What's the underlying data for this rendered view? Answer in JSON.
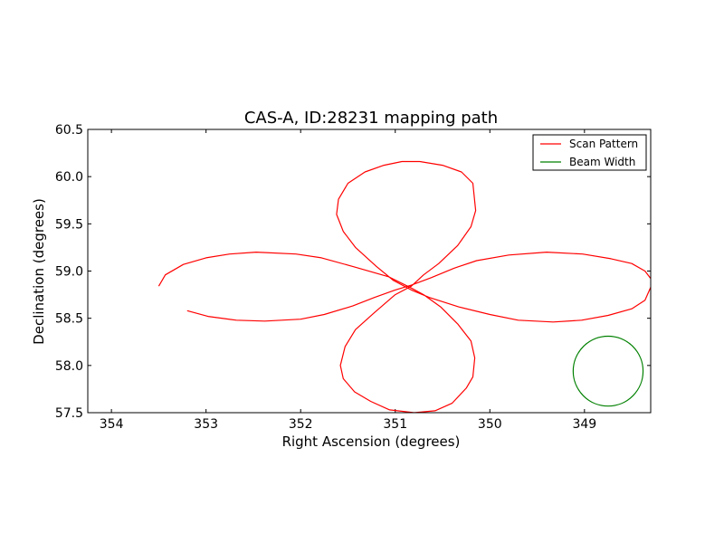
{
  "chart_data": {
    "type": "line",
    "title": "CAS-A, ID:28231 mapping path",
    "xlabel": "Right Ascension (degrees)",
    "ylabel": "Declination (degrees)",
    "xlim": [
      354.25,
      348.3
    ],
    "ylim": [
      57.5,
      60.5
    ],
    "x_ticks": [
      354,
      353,
      352,
      351,
      350,
      349
    ],
    "x_tick_labels": [
      "354",
      "353",
      "352",
      "351",
      "350",
      "349"
    ],
    "y_ticks": [
      57.5,
      58.0,
      58.5,
      59.0,
      59.5,
      60.0,
      60.5
    ],
    "y_tick_labels": [
      "57.5",
      "58.0",
      "58.5",
      "59.0",
      "59.5",
      "60.0",
      "60.5"
    ],
    "legend_position": "top-right",
    "series": [
      {
        "name": "Scan Pattern",
        "color": "#ff0000",
        "points": [
          [
            353.2,
            58.58
          ],
          [
            352.98,
            58.52
          ],
          [
            352.68,
            58.48
          ],
          [
            352.38,
            58.47
          ],
          [
            352.0,
            58.49
          ],
          [
            351.75,
            58.54
          ],
          [
            351.45,
            58.63
          ],
          [
            351.22,
            58.72
          ],
          [
            351.0,
            58.8
          ],
          [
            350.83,
            58.85
          ],
          [
            350.62,
            58.93
          ],
          [
            350.38,
            59.03
          ],
          [
            350.14,
            59.11
          ],
          [
            349.8,
            59.17
          ],
          [
            349.4,
            59.2
          ],
          [
            349.02,
            59.18
          ],
          [
            348.72,
            59.13
          ],
          [
            348.5,
            59.08
          ],
          [
            348.36,
            59.0
          ],
          [
            348.3,
            58.92
          ],
          [
            348.29,
            58.85
          ],
          [
            348.36,
            58.69
          ],
          [
            348.5,
            58.6
          ],
          [
            348.75,
            58.53
          ],
          [
            349.03,
            58.48
          ],
          [
            349.33,
            58.46
          ],
          [
            349.7,
            58.48
          ],
          [
            350.0,
            58.54
          ],
          [
            350.33,
            58.62
          ],
          [
            350.64,
            58.72
          ],
          [
            350.83,
            58.8
          ],
          [
            351.02,
            58.9
          ],
          [
            351.2,
            59.05
          ],
          [
            351.42,
            59.25
          ],
          [
            351.55,
            59.42
          ],
          [
            351.62,
            59.6
          ],
          [
            351.6,
            59.76
          ],
          [
            351.5,
            59.93
          ],
          [
            351.32,
            60.05
          ],
          [
            351.12,
            60.12
          ],
          [
            350.93,
            60.16
          ],
          [
            350.74,
            60.16
          ],
          [
            350.5,
            60.12
          ],
          [
            350.3,
            60.05
          ],
          [
            350.18,
            59.93
          ],
          [
            350.15,
            59.64
          ],
          [
            350.2,
            59.47
          ],
          [
            350.34,
            59.27
          ],
          [
            350.54,
            59.08
          ],
          [
            350.7,
            58.96
          ],
          [
            350.83,
            58.84
          ],
          [
            351.0,
            58.75
          ],
          [
            351.22,
            58.56
          ],
          [
            351.42,
            58.38
          ],
          [
            351.53,
            58.2
          ],
          [
            351.58,
            58.0
          ],
          [
            351.55,
            57.86
          ],
          [
            351.43,
            57.72
          ],
          [
            351.26,
            57.62
          ],
          [
            351.06,
            57.53
          ],
          [
            350.8,
            57.5
          ],
          [
            350.58,
            57.52
          ],
          [
            350.4,
            57.6
          ],
          [
            350.25,
            57.76
          ],
          [
            350.18,
            57.88
          ],
          [
            350.16,
            58.08
          ],
          [
            350.2,
            58.26
          ],
          [
            350.34,
            58.44
          ],
          [
            350.52,
            58.62
          ],
          [
            350.7,
            58.75
          ],
          [
            350.83,
            58.82
          ],
          [
            351.07,
            58.94
          ],
          [
            351.42,
            59.04
          ],
          [
            351.78,
            59.14
          ],
          [
            352.05,
            59.18
          ],
          [
            352.47,
            59.2
          ],
          [
            352.75,
            59.18
          ],
          [
            353.0,
            59.14
          ],
          [
            353.24,
            59.07
          ],
          [
            353.43,
            58.96
          ],
          [
            353.5,
            58.84
          ]
        ]
      },
      {
        "name": "Beam Width",
        "color": "#008000",
        "shape": "circle",
        "center": [
          348.75,
          57.94
        ],
        "radius_dec": 0.37
      }
    ]
  }
}
